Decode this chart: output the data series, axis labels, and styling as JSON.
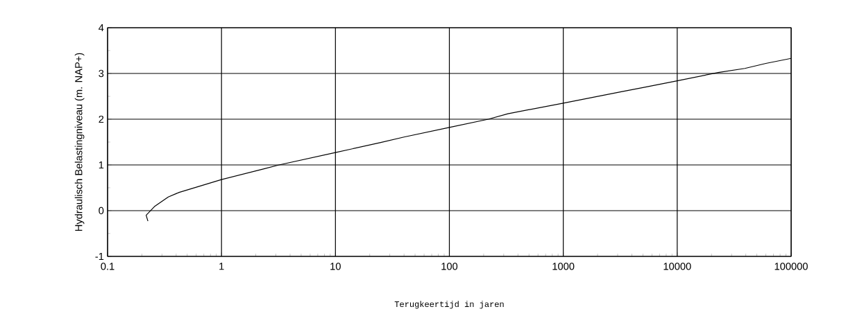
{
  "chart_data": {
    "type": "line",
    "xlabel": "Terugkeertijd in jaren",
    "ylabel": "Hydraulisch Belastingniveau (m. NAP+)",
    "log": "x",
    "grid": true,
    "marker": "none",
    "line_style": "solid",
    "xlim": [
      0.1,
      100000
    ],
    "ylim": [
      -1,
      4
    ],
    "xticks": [
      0.1,
      1,
      10,
      100,
      1000,
      10000,
      100000
    ],
    "yticks": [
      -1,
      0,
      1,
      2,
      3,
      4
    ],
    "series": [
      {
        "color": "#000000",
        "x": [
          0.226,
          0.218,
          0.258,
          0.341,
          0.425,
          1,
          2.33,
          3.2,
          10,
          25,
          40,
          100,
          220,
          327,
          1000,
          3230,
          5000,
          10000,
          22900,
          39200,
          60000,
          100000
        ],
        "values": [
          -0.23,
          -0.1,
          0.09,
          0.3,
          0.4,
          0.68,
          0.91,
          1.0,
          1.27,
          1.49,
          1.61,
          1.82,
          2.0,
          2.12,
          2.35,
          2.6,
          2.69,
          2.84,
          3.02,
          3.11,
          3.22,
          3.33
        ]
      }
    ]
  }
}
